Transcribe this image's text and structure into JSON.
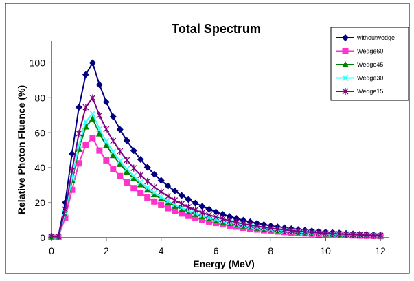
{
  "chart_data": {
    "type": "line",
    "title": "Total Spectrum",
    "xlabel": "Energy (MeV)",
    "ylabel": "Relative Photon Fluence (%)",
    "xlim": [
      0,
      12
    ],
    "ylim": [
      0,
      110
    ],
    "xticks": [
      0,
      2,
      4,
      6,
      8,
      10,
      12
    ],
    "yticks": [
      0,
      20,
      40,
      60,
      80,
      100
    ],
    "grid": false,
    "legend_position": "top-right",
    "peak_energy": 1.5,
    "energy_step": 0.25,
    "series": [
      {
        "name": "withoutwedge",
        "color": "#000080",
        "marker": "diamond",
        "peak": 100
      },
      {
        "name": "Wedge60",
        "color": "#ff33cc",
        "marker": "square",
        "peak": 57
      },
      {
        "name": "Wedge45",
        "color": "#008000",
        "marker": "triangle",
        "peak": 68
      },
      {
        "name": "Wedge30",
        "color": "#33ffff",
        "marker": "x",
        "peak": 71
      },
      {
        "name": "Wedge15",
        "color": "#800080",
        "marker": "star",
        "peak": 80
      }
    ]
  }
}
